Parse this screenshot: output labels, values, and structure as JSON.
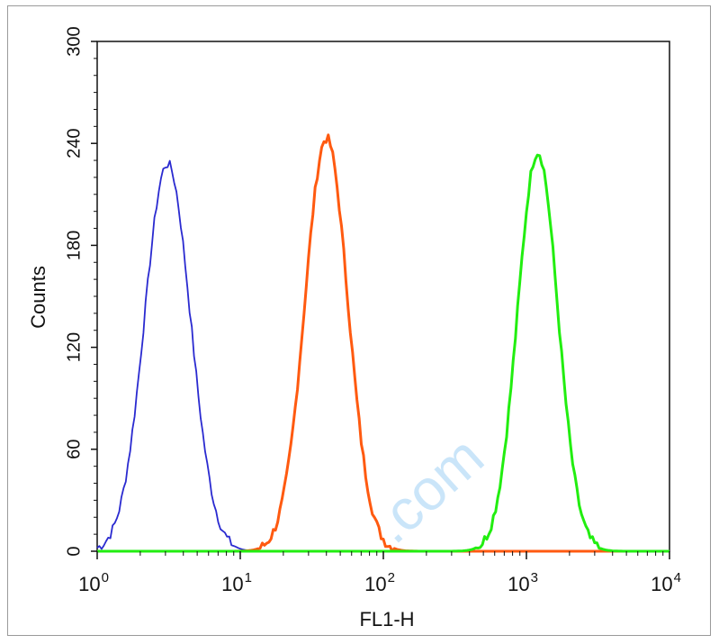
{
  "chart_data": {
    "type": "line",
    "xlabel": "FL1-H",
    "ylabel": "Counts",
    "xscale": "log",
    "xlim": [
      1,
      10000
    ],
    "ylim": [
      0,
      300
    ],
    "x_ticks": [
      {
        "base": "10",
        "exp": "0",
        "value": 1
      },
      {
        "base": "10",
        "exp": "1",
        "value": 10
      },
      {
        "base": "10",
        "exp": "2",
        "value": 100
      },
      {
        "base": "10",
        "exp": "3",
        "value": 1000
      },
      {
        "base": "10",
        "exp": "4",
        "value": 10000
      }
    ],
    "y_ticks": [
      "0",
      "60",
      "120",
      "180",
      "240",
      "300"
    ],
    "grid": false,
    "series": [
      {
        "color": "#2a2ad0",
        "peak_x": 3.1,
        "peak_y": 228,
        "width_decades": 0.16,
        "x": [
          1,
          1.4,
          2,
          2.5,
          3.1,
          3.9,
          5,
          6.3,
          8,
          10
        ],
        "y": [
          8,
          30,
          120,
          195,
          228,
          190,
          100,
          35,
          6,
          0
        ]
      },
      {
        "color": "#ff5a10",
        "peak_x": 40,
        "peak_y": 243,
        "width_decades": 0.15,
        "x": [
          15,
          20,
          25,
          32,
          40,
          50,
          63,
          80,
          100,
          140
        ],
        "y": [
          0,
          15,
          90,
          190,
          243,
          195,
          110,
          35,
          8,
          0
        ]
      },
      {
        "color": "#22ee10",
        "peak_x": 1200,
        "peak_y": 235,
        "width_decades": 0.14,
        "x": [
          400,
          550,
          700,
          900,
          1200,
          1500,
          1800,
          2200,
          2600
        ],
        "y": [
          0,
          15,
          80,
          180,
          235,
          200,
          110,
          20,
          0
        ]
      }
    ],
    "watermark": ".com"
  }
}
